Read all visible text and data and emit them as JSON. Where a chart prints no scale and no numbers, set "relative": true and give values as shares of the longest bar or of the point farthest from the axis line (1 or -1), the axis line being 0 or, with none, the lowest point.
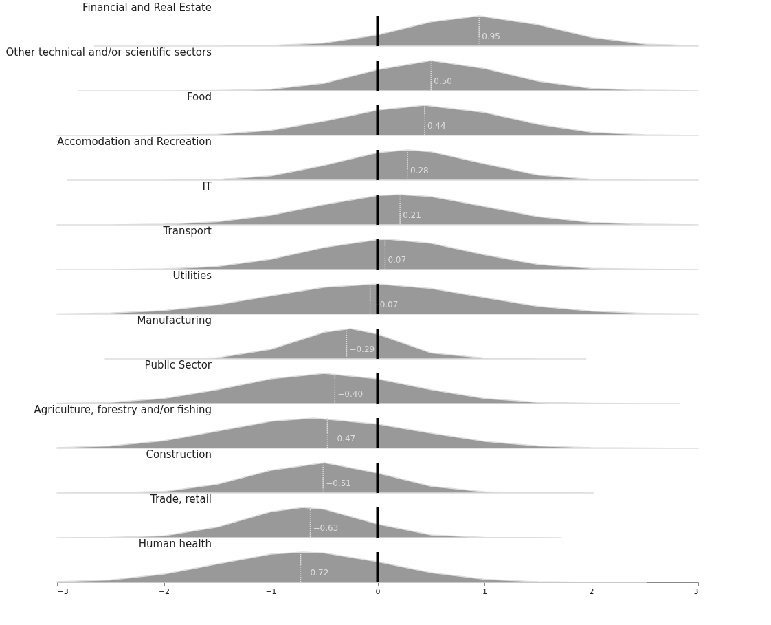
{
  "chart_data": [
    {
      "type": "area",
      "title": "Financial and Real Estate",
      "color": "#999999",
      "relative": true,
      "xlim": [
        -3,
        3
      ],
      "tick_labels": false,
      "x": [
        -2.65,
        -2,
        -1.5,
        -1,
        -0.5,
        0,
        0.5,
        0.95,
        1.5,
        2,
        2.5,
        3
      ],
      "values": [
        0,
        0,
        0,
        0.02,
        0.1,
        0.37,
        0.8,
        1,
        0.71,
        0.29,
        0.07,
        0.01
      ],
      "ref_lines": [
        {
          "axis": "x",
          "value": 0,
          "color": "#000000"
        },
        {
          "axis": "x",
          "value": 0.95,
          "label": "0.95",
          "color": "#dddddd",
          "line_style": "dotted"
        }
      ]
    },
    {
      "type": "area",
      "title": "Other technical and/or scientific sectors",
      "color": "#999999",
      "relative": true,
      "xlim": [
        -3,
        3
      ],
      "tick_labels": false,
      "x": [
        -2.8,
        -2,
        -1.5,
        -1,
        -0.5,
        0,
        0.5,
        1,
        1.5,
        2,
        2.5,
        3
      ],
      "values": [
        0,
        0,
        0.01,
        0.05,
        0.25,
        0.7,
        1,
        0.74,
        0.32,
        0.08,
        0.02,
        0
      ],
      "ref_lines": [
        {
          "axis": "x",
          "value": 0,
          "color": "#000000"
        },
        {
          "axis": "x",
          "value": 0.5,
          "label": "0.50",
          "color": "#dddddd",
          "line_style": "dotted"
        }
      ]
    },
    {
      "type": "area",
      "title": "Food",
      "color": "#999999",
      "relative": true,
      "xlim": [
        -3,
        3
      ],
      "tick_labels": false,
      "x": [
        -3,
        -2.5,
        -2,
        -1.5,
        -1,
        -0.5,
        0,
        0.44,
        1,
        1.5,
        2,
        2.5,
        3
      ],
      "values": [
        0,
        0,
        0.01,
        0.04,
        0.17,
        0.47,
        0.84,
        1,
        0.76,
        0.37,
        0.11,
        0.02,
        0
      ],
      "ref_lines": [
        {
          "axis": "x",
          "value": 0,
          "color": "#000000"
        },
        {
          "axis": "x",
          "value": 0.44,
          "label": "0.44",
          "color": "#dddddd",
          "line_style": "dotted"
        }
      ]
    },
    {
      "type": "area",
      "title": "Accomodation and Recreation",
      "color": "#999999",
      "relative": true,
      "xlim": [
        -3,
        3
      ],
      "tick_labels": false,
      "x": [
        -2.9,
        -2,
        -1.5,
        -1,
        -0.5,
        0,
        0.28,
        0.5,
        1,
        1.5,
        2,
        2.5,
        3
      ],
      "values": [
        0,
        0,
        0.02,
        0.14,
        0.49,
        0.91,
        1,
        0.94,
        0.54,
        0.17,
        0.03,
        0,
        0
      ],
      "ref_lines": [
        {
          "axis": "x",
          "value": 0,
          "color": "#000000"
        },
        {
          "axis": "x",
          "value": 0.28,
          "label": "0.28",
          "color": "#dddddd",
          "line_style": "dotted"
        }
      ]
    },
    {
      "type": "area",
      "title": "IT",
      "color": "#999999",
      "relative": true,
      "xlim": [
        -3,
        3
      ],
      "tick_labels": false,
      "x": [
        -3,
        -2.5,
        -2,
        -1.5,
        -1,
        -0.5,
        0,
        0.21,
        0.5,
        1,
        1.5,
        2,
        2.5,
        3
      ],
      "values": [
        0,
        0,
        0.02,
        0.1,
        0.32,
        0.67,
        0.97,
        1,
        0.94,
        0.61,
        0.27,
        0.08,
        0.02,
        0
      ],
      "ref_lines": [
        {
          "axis": "x",
          "value": 0,
          "color": "#000000"
        },
        {
          "axis": "x",
          "value": 0.21,
          "label": "0.21",
          "color": "#dddddd",
          "line_style": "dotted"
        }
      ]
    },
    {
      "type": "area",
      "title": "Transport",
      "color": "#999999",
      "relative": true,
      "xlim": [
        -3,
        3
      ],
      "tick_labels": false,
      "x": [
        -3,
        -2.5,
        -2,
        -1.5,
        -1,
        -0.5,
        0,
        0.1,
        0.5,
        1,
        1.5,
        2,
        2.5,
        3
      ],
      "values": [
        0,
        0,
        0.02,
        0.1,
        0.34,
        0.73,
        0.99,
        1,
        0.87,
        0.49,
        0.17,
        0.04,
        0.01,
        0
      ],
      "ref_lines": [
        {
          "axis": "x",
          "value": 0,
          "color": "#000000"
        },
        {
          "axis": "x",
          "value": 0.07,
          "label": "0.07",
          "color": "#dddddd",
          "line_style": "dotted"
        }
      ]
    },
    {
      "type": "area",
      "title": "Utilities",
      "color": "#999999",
      "relative": true,
      "xlim": [
        -3,
        3
      ],
      "tick_labels": false,
      "x": [
        -3,
        -2.5,
        -2,
        -1.5,
        -1,
        -0.5,
        0,
        0.5,
        1,
        1.5,
        2,
        2.5,
        3
      ],
      "values": [
        0.01,
        0.04,
        0.12,
        0.31,
        0.61,
        0.89,
        1,
        0.85,
        0.55,
        0.26,
        0.1,
        0.03,
        0.01
      ],
      "ref_lines": [
        {
          "axis": "x",
          "value": 0,
          "color": "#000000"
        },
        {
          "axis": "x",
          "value": -0.07,
          "label": "−0.07",
          "color": "#dddddd",
          "line_style": "dotted"
        }
      ]
    },
    {
      "type": "area",
      "title": "Manufacturing",
      "color": "#999999",
      "relative": true,
      "xlim": [
        -3,
        3
      ],
      "tick_labels": false,
      "x": [
        -2.55,
        -2,
        -1.5,
        -1,
        -0.5,
        -0.25,
        0,
        0.5,
        1,
        1.5,
        1.95
      ],
      "values": [
        0,
        0,
        0.04,
        0.32,
        0.88,
        1,
        0.82,
        0.2,
        0.03,
        0,
        0
      ],
      "ref_lines": [
        {
          "axis": "x",
          "value": 0,
          "color": "#000000"
        },
        {
          "axis": "x",
          "value": -0.29,
          "label": "−0.29",
          "color": "#dddddd",
          "line_style": "dotted"
        }
      ]
    },
    {
      "type": "area",
      "title": "Public Sector",
      "color": "#999999",
      "relative": true,
      "xlim": [
        -3,
        3
      ],
      "tick_labels": false,
      "x": [
        -3,
        -2.5,
        -2,
        -1.5,
        -1,
        -0.5,
        0,
        0.5,
        1,
        1.5,
        2,
        2.5,
        2.83
      ],
      "values": [
        0.01,
        0.04,
        0.17,
        0.46,
        0.82,
        1,
        0.82,
        0.46,
        0.17,
        0.04,
        0.01,
        0,
        0
      ],
      "ref_lines": [
        {
          "axis": "x",
          "value": 0,
          "color": "#000000"
        },
        {
          "axis": "x",
          "value": -0.4,
          "label": "−0.40",
          "color": "#dddddd",
          "line_style": "dotted"
        }
      ]
    },
    {
      "type": "area",
      "title": "Agriculture, forestry and/or fishing",
      "color": "#999999",
      "relative": true,
      "xlim": [
        -3,
        3
      ],
      "tick_labels": false,
      "x": [
        -3,
        -2.5,
        -2,
        -1.5,
        -1,
        -0.6,
        0,
        0.5,
        1,
        1.5,
        2,
        2.5,
        3
      ],
      "values": [
        0.02,
        0.08,
        0.25,
        0.57,
        0.89,
        1,
        0.8,
        0.5,
        0.23,
        0.08,
        0.02,
        0.01,
        0
      ],
      "ref_lines": [
        {
          "axis": "x",
          "value": 0,
          "color": "#000000"
        },
        {
          "axis": "x",
          "value": -0.47,
          "label": "−0.47",
          "color": "#dddddd",
          "line_style": "dotted"
        }
      ]
    },
    {
      "type": "area",
      "title": "Construction",
      "color": "#999999",
      "relative": true,
      "xlim": [
        -3,
        3
      ],
      "tick_labels": false,
      "x": [
        -3,
        -2.5,
        -2,
        -1.5,
        -1,
        -0.5,
        0,
        0.5,
        1,
        1.5,
        2.02
      ],
      "values": [
        0,
        0.01,
        0.05,
        0.29,
        0.75,
        1,
        0.66,
        0.22,
        0.04,
        0.01,
        0
      ],
      "ref_lines": [
        {
          "axis": "x",
          "value": 0,
          "color": "#000000"
        },
        {
          "axis": "x",
          "value": -0.51,
          "label": "−0.51",
          "color": "#dddddd",
          "line_style": "dotted"
        }
      ]
    },
    {
      "type": "area",
      "title": "Trade, retail",
      "color": "#999999",
      "relative": true,
      "xlim": [
        -3,
        3
      ],
      "tick_labels": false,
      "x": [
        -3,
        -2.5,
        -2,
        -1.5,
        -1,
        -0.7,
        -0.5,
        0,
        0.5,
        1,
        1.72
      ],
      "values": [
        0,
        0.01,
        0.06,
        0.35,
        0.86,
        1,
        0.94,
        0.45,
        0.09,
        0.01,
        0
      ],
      "ref_lines": [
        {
          "axis": "x",
          "value": 0,
          "color": "#000000"
        },
        {
          "axis": "x",
          "value": -0.63,
          "label": "−0.63",
          "color": "#dddddd",
          "line_style": "dotted"
        }
      ]
    },
    {
      "type": "area",
      "title": "Human health",
      "color": "#999999",
      "relative": true,
      "xlim": [
        -3,
        3
      ],
      "xticks": [
        -3,
        -2,
        -1,
        0,
        1,
        2,
        3
      ],
      "tick_labels": "x",
      "x": [
        -3,
        -2.5,
        -2,
        -1.5,
        -1,
        -0.7,
        -0.5,
        0,
        0.5,
        1,
        1.5,
        2,
        2.52
      ],
      "values": [
        0.02,
        0.08,
        0.27,
        0.61,
        0.93,
        1,
        0.97,
        0.68,
        0.32,
        0.1,
        0.02,
        0,
        0
      ],
      "ref_lines": [
        {
          "axis": "x",
          "value": 0,
          "color": "#000000"
        },
        {
          "axis": "x",
          "value": -0.72,
          "label": "−0.72",
          "color": "#dddddd",
          "line_style": "dotted"
        }
      ]
    }
  ]
}
